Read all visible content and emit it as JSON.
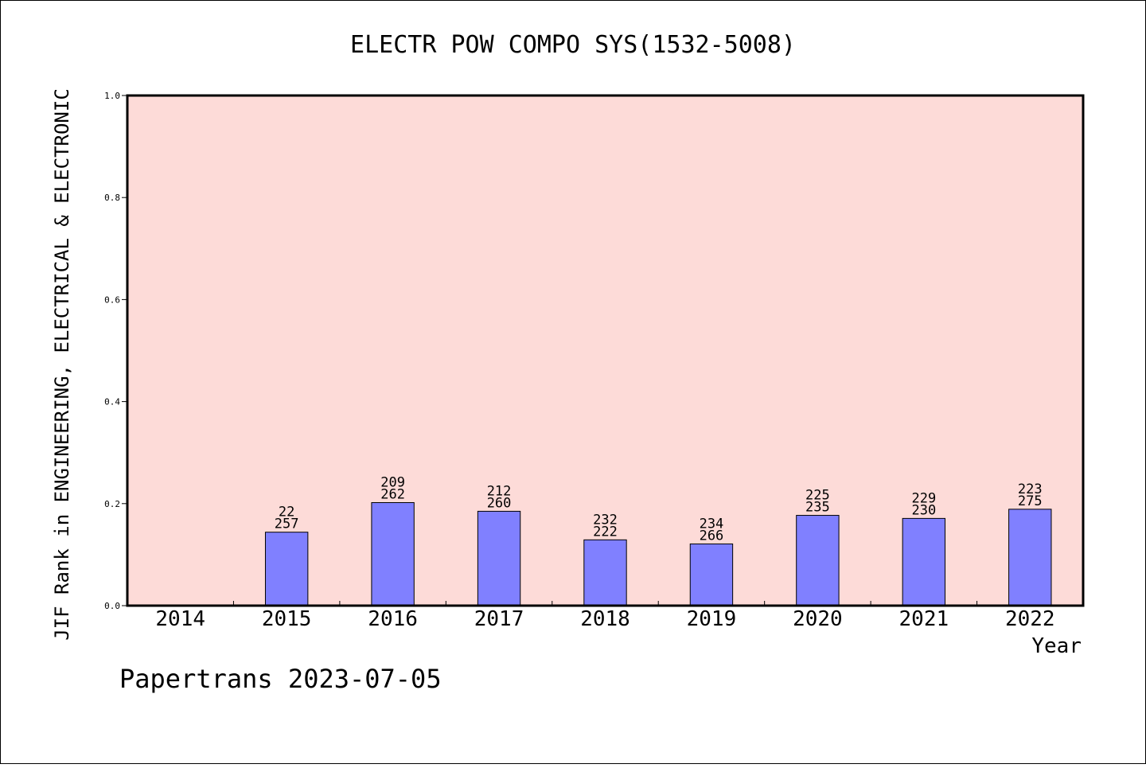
{
  "chart_data": {
    "type": "bar",
    "title": "ELECTR POW COMPO SYS(1532-5008)",
    "xlabel": "Year",
    "ylabel": "JIF Rank in ENGINEERING, ELECTRICAL & ELECTRONIC",
    "ylim": [
      0,
      1.0
    ],
    "yticks": [
      "0.0",
      "0.2",
      "0.4",
      "0.6",
      "0.8",
      "1.0"
    ],
    "categories": [
      "2014",
      "2015",
      "2016",
      "2017",
      "2018",
      "2019",
      "2020",
      "2021",
      "2022"
    ],
    "values": [
      null,
      0.144,
      0.202,
      0.185,
      0.129,
      0.121,
      0.177,
      0.171,
      0.189
    ],
    "rank_labels": [
      null,
      {
        "rank": "22",
        "total": "257"
      },
      {
        "rank": "209",
        "total": "262"
      },
      {
        "rank": "212",
        "total": "260"
      },
      {
        "rank": "232",
        "total": "222"
      },
      {
        "rank": "234",
        "total": "266"
      },
      {
        "rank": "225",
        "total": "235"
      },
      {
        "rank": "229",
        "total": "230"
      },
      {
        "rank": "223",
        "total": "275"
      }
    ],
    "grid": false,
    "colors": {
      "plot_background": "#fddbd8",
      "bar_fill": "#8080ff",
      "bar_stroke": "#000000",
      "axis": "#000000"
    }
  },
  "footer": {
    "credit": "Papertrans 2023-07-05"
  }
}
